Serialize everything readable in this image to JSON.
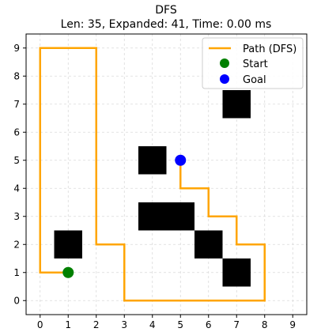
{
  "chart_data": {
    "type": "line",
    "title": "DFS",
    "subtitle": "Len: 35, Expanded: 41, Time: 0.00 ms",
    "xlabel": "",
    "ylabel": "",
    "xlim": [
      -0.5,
      9.5
    ],
    "ylim": [
      -0.5,
      9.5
    ],
    "xticks": [
      0,
      1,
      2,
      3,
      4,
      5,
      6,
      7,
      8,
      9
    ],
    "yticks": [
      0,
      1,
      2,
      3,
      4,
      5,
      6,
      7,
      8,
      9
    ],
    "grid": true,
    "legend_position": "top-right",
    "obstacles": [
      [
        1,
        2
      ],
      [
        4,
        5
      ],
      [
        4,
        3
      ],
      [
        5,
        3
      ],
      [
        6,
        2
      ],
      [
        7,
        1
      ],
      [
        7,
        7
      ]
    ],
    "series": [
      {
        "name": "Path (DFS)",
        "color": "#ffa500",
        "x": [
          1,
          0,
          0,
          2,
          2,
          3,
          3,
          8,
          8,
          7,
          7,
          6,
          6,
          5,
          5
        ],
        "y": [
          1,
          1,
          9,
          9,
          2,
          2,
          0,
          0,
          2,
          2,
          3,
          3,
          4,
          4,
          5
        ]
      }
    ],
    "start": {
      "name": "Start",
      "x": 1,
      "y": 1,
      "color": "#008000"
    },
    "goal": {
      "name": "Goal",
      "x": 5,
      "y": 5,
      "color": "#0000ff"
    }
  }
}
